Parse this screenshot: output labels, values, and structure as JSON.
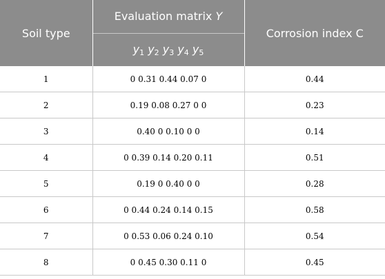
{
  "headers": {
    "soil_type": "Soil type",
    "evaluation_prefix": "Evaluation matrix",
    "evaluation_var": "Y",
    "corrosion_index": "Corrosion index C",
    "subvars": [
      {
        "base": "y",
        "sub": "1"
      },
      {
        "base": "y",
        "sub": "2"
      },
      {
        "base": "y",
        "sub": "3"
      },
      {
        "base": "y",
        "sub": "4"
      },
      {
        "base": "y",
        "sub": "5"
      }
    ]
  },
  "rows": [
    {
      "soil_type": "1",
      "matrix": "0 0.31 0.44 0.07 0",
      "c": "0.44"
    },
    {
      "soil_type": "2",
      "matrix": "0.19 0.08 0.27 0 0",
      "c": "0.23"
    },
    {
      "soil_type": "3",
      "matrix": "0.40 0 0.10 0 0",
      "c": "0.14"
    },
    {
      "soil_type": "4",
      "matrix": "0 0.39 0.14 0.20 0.11",
      "c": "0.51"
    },
    {
      "soil_type": "5",
      "matrix": "0.19 0 0.40 0 0",
      "c": "0.28"
    },
    {
      "soil_type": "6",
      "matrix": "0 0.44 0.24 0.14 0.15",
      "c": "0.58"
    },
    {
      "soil_type": "7",
      "matrix": "0 0.53 0.06 0.24 0.10",
      "c": "0.54"
    },
    {
      "soil_type": "8",
      "matrix": "0 0.45 0.30 0.11 0",
      "c": "0.45"
    }
  ]
}
